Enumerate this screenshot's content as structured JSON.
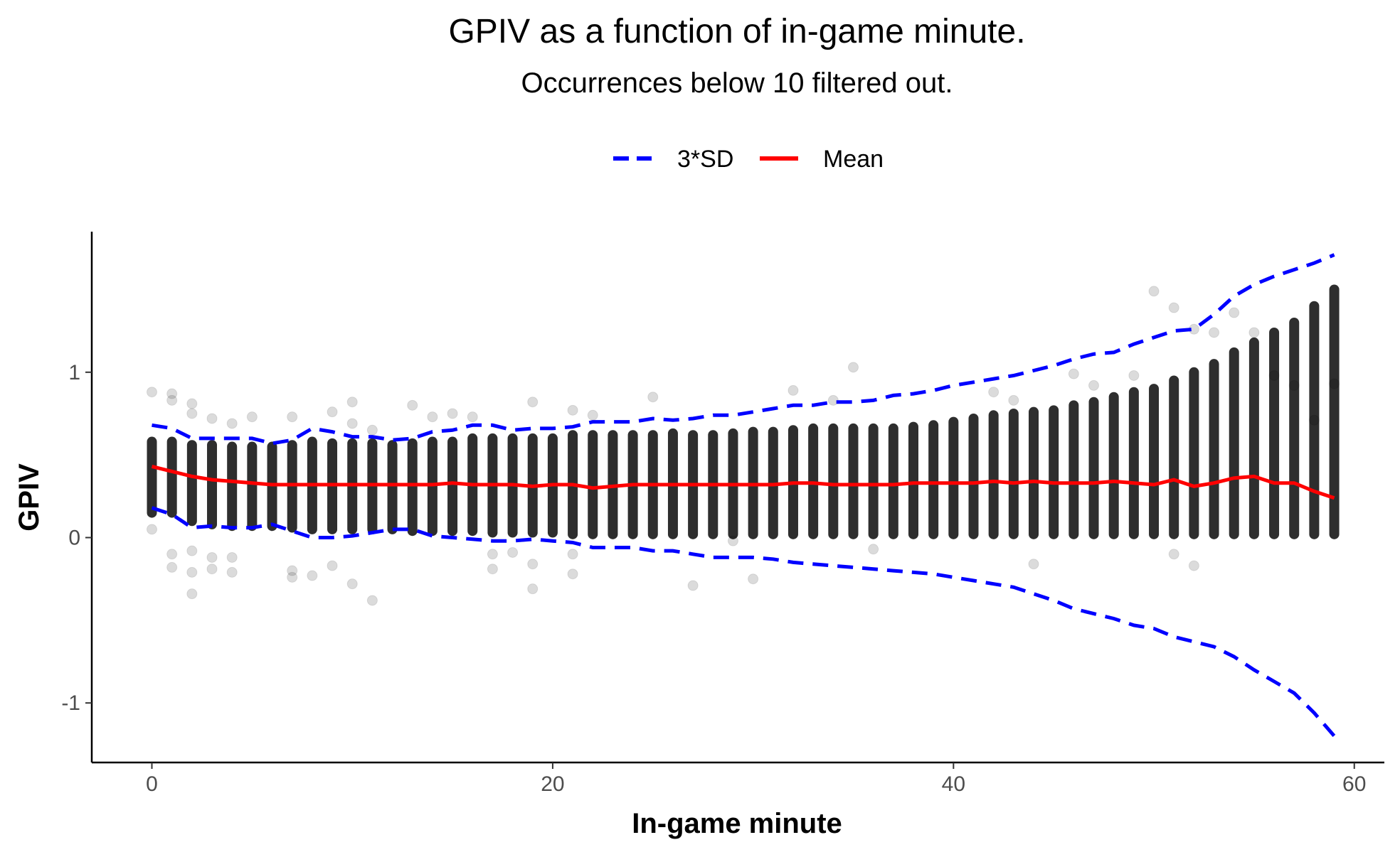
{
  "chart_data": {
    "type": "scatter",
    "title": "GPIV as a function of in-game minute.",
    "subtitle": "Occurrences below 10 filtered out.",
    "xlabel": "In-game minute",
    "ylabel": "GPIV",
    "xlim": [
      -3,
      61.5
    ],
    "ylim": [
      -1.36,
      1.85
    ],
    "xticks": [
      0,
      20,
      40,
      60
    ],
    "yticks": [
      -1,
      0,
      1
    ],
    "grid": false,
    "legend": {
      "position": "top",
      "entries": [
        "3*SD",
        "Mean"
      ]
    },
    "colors": {
      "upper_sd": "#0000ff",
      "mean": "#ff0000",
      "points": "#000000"
    },
    "x": [
      0,
      1,
      2,
      3,
      4,
      5,
      6,
      7,
      8,
      9,
      10,
      11,
      12,
      13,
      14,
      15,
      16,
      17,
      18,
      19,
      20,
      21,
      22,
      23,
      24,
      25,
      26,
      27,
      28,
      29,
      30,
      31,
      32,
      33,
      34,
      35,
      36,
      37,
      38,
      39,
      40,
      41,
      42,
      43,
      44,
      45,
      46,
      47,
      48,
      49,
      50,
      51,
      52,
      53,
      54,
      55,
      56,
      57,
      58,
      59
    ],
    "series": [
      {
        "name": "Mean",
        "values": [
          0.43,
          0.4,
          0.37,
          0.35,
          0.34,
          0.33,
          0.32,
          0.32,
          0.32,
          0.32,
          0.32,
          0.32,
          0.32,
          0.32,
          0.32,
          0.33,
          0.32,
          0.32,
          0.32,
          0.31,
          0.32,
          0.32,
          0.3,
          0.31,
          0.32,
          0.32,
          0.32,
          0.32,
          0.32,
          0.32,
          0.32,
          0.32,
          0.33,
          0.33,
          0.32,
          0.32,
          0.32,
          0.32,
          0.33,
          0.33,
          0.33,
          0.33,
          0.34,
          0.33,
          0.34,
          0.33,
          0.33,
          0.33,
          0.34,
          0.33,
          0.32,
          0.35,
          0.31,
          0.33,
          0.36,
          0.37,
          0.33,
          0.33,
          0.28,
          0.24
        ]
      },
      {
        "name": "3*SD",
        "upper": [
          0.68,
          0.66,
          0.6,
          0.6,
          0.6,
          0.6,
          0.57,
          0.59,
          0.66,
          0.64,
          0.61,
          0.61,
          0.59,
          0.6,
          0.64,
          0.65,
          0.68,
          0.68,
          0.65,
          0.66,
          0.66,
          0.67,
          0.7,
          0.7,
          0.7,
          0.72,
          0.71,
          0.72,
          0.74,
          0.74,
          0.76,
          0.78,
          0.8,
          0.8,
          0.82,
          0.82,
          0.83,
          0.86,
          0.87,
          0.89,
          0.92,
          0.94,
          0.96,
          0.98,
          1.01,
          1.04,
          1.08,
          1.11,
          1.12,
          1.17,
          1.21,
          1.25,
          1.26,
          1.35,
          1.46,
          1.53,
          1.58,
          1.62,
          1.66,
          1.71
        ],
        "lower": [
          0.18,
          0.14,
          0.06,
          0.07,
          0.06,
          0.06,
          0.08,
          0.04,
          0.0,
          0.0,
          0.01,
          0.03,
          0.05,
          0.05,
          0.01,
          0.0,
          -0.01,
          -0.02,
          -0.02,
          -0.01,
          -0.02,
          -0.03,
          -0.06,
          -0.06,
          -0.06,
          -0.08,
          -0.08,
          -0.1,
          -0.12,
          -0.12,
          -0.12,
          -0.13,
          -0.15,
          -0.16,
          -0.17,
          -0.18,
          -0.19,
          -0.2,
          -0.21,
          -0.22,
          -0.24,
          -0.26,
          -0.28,
          -0.3,
          -0.34,
          -0.38,
          -0.43,
          -0.46,
          -0.49,
          -0.53,
          -0.55,
          -0.6,
          -0.63,
          -0.66,
          -0.72,
          -0.8,
          -0.87,
          -0.94,
          -1.06,
          -1.2
        ]
      },
      {
        "name": "GPIV",
        "bands": [
          [
            0.15,
            0.58
          ],
          [
            0.15,
            0.58
          ],
          [
            0.1,
            0.56
          ],
          [
            0.08,
            0.56
          ],
          [
            0.07,
            0.55
          ],
          [
            0.07,
            0.55
          ],
          [
            0.07,
            0.55
          ],
          [
            0.06,
            0.56
          ],
          [
            0.05,
            0.58
          ],
          [
            0.05,
            0.57
          ],
          [
            0.05,
            0.57
          ],
          [
            0.05,
            0.57
          ],
          [
            0.05,
            0.56
          ],
          [
            0.04,
            0.57
          ],
          [
            0.04,
            0.58
          ],
          [
            0.04,
            0.58
          ],
          [
            0.04,
            0.6
          ],
          [
            0.03,
            0.6
          ],
          [
            0.03,
            0.6
          ],
          [
            0.03,
            0.6
          ],
          [
            0.03,
            0.6
          ],
          [
            0.02,
            0.62
          ],
          [
            0.02,
            0.62
          ],
          [
            0.02,
            0.62
          ],
          [
            0.02,
            0.62
          ],
          [
            0.02,
            0.62
          ],
          [
            0.02,
            0.63
          ],
          [
            0.02,
            0.62
          ],
          [
            0.02,
            0.62
          ],
          [
            0.02,
            0.63
          ],
          [
            0.02,
            0.64
          ],
          [
            0.02,
            0.64
          ],
          [
            0.02,
            0.65
          ],
          [
            0.02,
            0.66
          ],
          [
            0.02,
            0.66
          ],
          [
            0.02,
            0.66
          ],
          [
            0.02,
            0.66
          ],
          [
            0.02,
            0.66
          ],
          [
            0.02,
            0.67
          ],
          [
            0.02,
            0.68
          ],
          [
            0.02,
            0.7
          ],
          [
            0.02,
            0.72
          ],
          [
            0.02,
            0.74
          ],
          [
            0.02,
            0.75
          ],
          [
            0.02,
            0.76
          ],
          [
            0.02,
            0.77
          ],
          [
            0.02,
            0.8
          ],
          [
            0.02,
            0.82
          ],
          [
            0.02,
            0.85
          ],
          [
            0.02,
            0.88
          ],
          [
            0.02,
            0.9
          ],
          [
            0.02,
            0.95
          ],
          [
            0.02,
            1.0
          ],
          [
            0.02,
            1.05
          ],
          [
            0.02,
            1.12
          ],
          [
            0.02,
            1.18
          ],
          [
            0.02,
            1.24
          ],
          [
            0.02,
            1.3
          ],
          [
            0.02,
            1.4
          ],
          [
            0.02,
            1.5
          ]
        ],
        "outliers": [
          [
            0,
            0.88
          ],
          [
            0,
            0.05
          ],
          [
            1,
            0.87
          ],
          [
            1,
            0.83
          ],
          [
            1,
            -0.1
          ],
          [
            1,
            -0.18
          ],
          [
            2,
            0.81
          ],
          [
            2,
            0.75
          ],
          [
            2,
            -0.08
          ],
          [
            2,
            -0.21
          ],
          [
            2,
            -0.34
          ],
          [
            3,
            0.72
          ],
          [
            3,
            -0.12
          ],
          [
            3,
            -0.19
          ],
          [
            4,
            0.69
          ],
          [
            4,
            -0.12
          ],
          [
            4,
            -0.21
          ],
          [
            5,
            0.73
          ],
          [
            7,
            0.73
          ],
          [
            7,
            -0.2
          ],
          [
            7,
            -0.24
          ],
          [
            8,
            -0.23
          ],
          [
            9,
            0.76
          ],
          [
            9,
            -0.17
          ],
          [
            10,
            0.82
          ],
          [
            10,
            0.69
          ],
          [
            10,
            -0.28
          ],
          [
            11,
            -0.38
          ],
          [
            11,
            0.65
          ],
          [
            13,
            0.8
          ],
          [
            14,
            0.73
          ],
          [
            15,
            0.75
          ],
          [
            16,
            0.73
          ],
          [
            17,
            -0.1
          ],
          [
            17,
            -0.19
          ],
          [
            18,
            -0.09
          ],
          [
            19,
            0.82
          ],
          [
            19,
            -0.16
          ],
          [
            19,
            -0.31
          ],
          [
            21,
            0.77
          ],
          [
            21,
            -0.1
          ],
          [
            21,
            -0.22
          ],
          [
            22,
            0.74
          ],
          [
            25,
            0.85
          ],
          [
            27,
            -0.29
          ],
          [
            29,
            -0.02
          ],
          [
            30,
            -0.25
          ],
          [
            32,
            0.89
          ],
          [
            34,
            0.83
          ],
          [
            35,
            1.03
          ],
          [
            36,
            -0.07
          ],
          [
            42,
            0.88
          ],
          [
            43,
            0.83
          ],
          [
            44,
            -0.16
          ],
          [
            46,
            0.99
          ],
          [
            47,
            0.92
          ],
          [
            49,
            0.98
          ],
          [
            50,
            1.49
          ],
          [
            51,
            1.39
          ],
          [
            51,
            -0.1
          ],
          [
            52,
            1.26
          ],
          [
            52,
            -0.17
          ],
          [
            53,
            1.24
          ],
          [
            54,
            1.36
          ],
          [
            55,
            1.24
          ],
          [
            56,
            0.98
          ],
          [
            57,
            0.92
          ],
          [
            58,
            0.71
          ],
          [
            59,
            0.93
          ]
        ]
      }
    ]
  }
}
